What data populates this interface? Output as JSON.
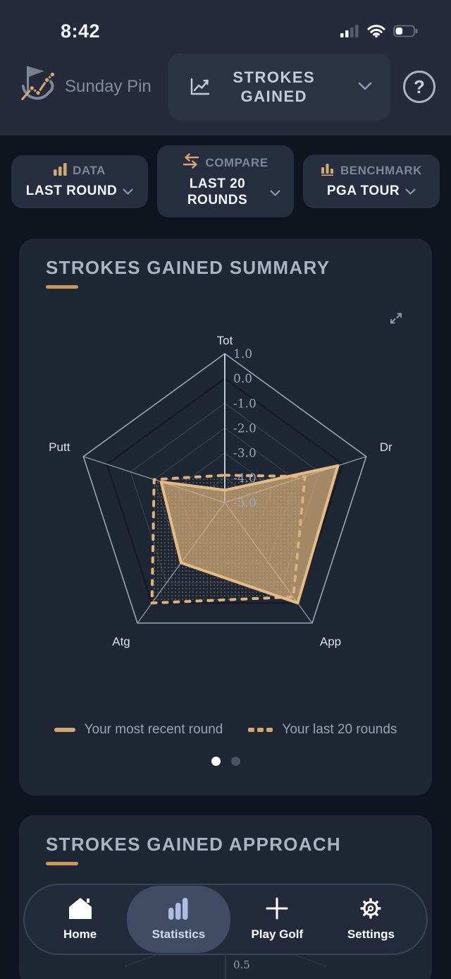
{
  "status_bar": {
    "time": "8:42"
  },
  "header": {
    "app_name": "Sunday Pin",
    "metric_selector": {
      "label": "STROKES GAINED"
    },
    "help_label": "?"
  },
  "filters": {
    "data": {
      "label": "DATA",
      "value": "LAST ROUND"
    },
    "compare": {
      "label": "COMPARE",
      "value": "LAST 20 ROUNDS"
    },
    "benchmark": {
      "label": "BENCHMARK",
      "value": "PGA TOUR"
    }
  },
  "summary_card": {
    "title": "STROKES GAINED SUMMARY",
    "legend": [
      {
        "label": "Your most recent round",
        "style": "solid"
      },
      {
        "label": "Your last 20 rounds",
        "style": "dashed"
      }
    ],
    "pagination": {
      "total": 2,
      "active": 1
    }
  },
  "approach_card": {
    "title": "STROKES GAINED APPROACH",
    "partial_tick_label": "0.5"
  },
  "nav": {
    "items": [
      {
        "label": "Home",
        "active": false
      },
      {
        "label": "Statistics",
        "active": true
      },
      {
        "label": "Play Golf",
        "active": false
      },
      {
        "label": "Settings",
        "active": false
      }
    ]
  },
  "colors": {
    "accent_gold": "#d2a86f",
    "solid_stroke": "#e3bc85",
    "solid_fill": "#d6ae78",
    "dashed_gold": "#ddb37c",
    "grid_outer": "#97a3b7",
    "grid_line": "#3d4659",
    "benchmark_line": "#151a27",
    "tick_text": "#9aa6bb",
    "category_text": "#dbe1ec",
    "page_bg": "#10141e",
    "chrome_bg": "#252b3a",
    "card_bg": "#1f2634",
    "active_nav_bg": "#404b64"
  },
  "chart_data": {
    "type": "radar",
    "title": "STROKES GAINED SUMMARY",
    "categories": [
      "Tot",
      "Dr",
      "App",
      "Atg",
      "Putt"
    ],
    "series": [
      {
        "name": "Your most recent round",
        "style": "solid",
        "values": [
          -4.5,
          -0.2,
          0.0,
          -2.0,
          -2.3
        ]
      },
      {
        "name": "Your last 20 rounds",
        "style": "dashed",
        "values": [
          -3.9,
          -1.6,
          -0.3,
          0.0,
          -2.0
        ]
      }
    ],
    "benchmark": {
      "name": "PGA TOUR",
      "value": 0.0
    },
    "scale": {
      "max": 1.0,
      "min": -5.0,
      "step": 1.0,
      "tick_labels": [
        "1.0",
        "0.0",
        "-1.0",
        "-2.0",
        "-3.0",
        "-4.0",
        "-5.0"
      ]
    },
    "grid": "pentagon-rings",
    "legend_position": "bottom"
  }
}
